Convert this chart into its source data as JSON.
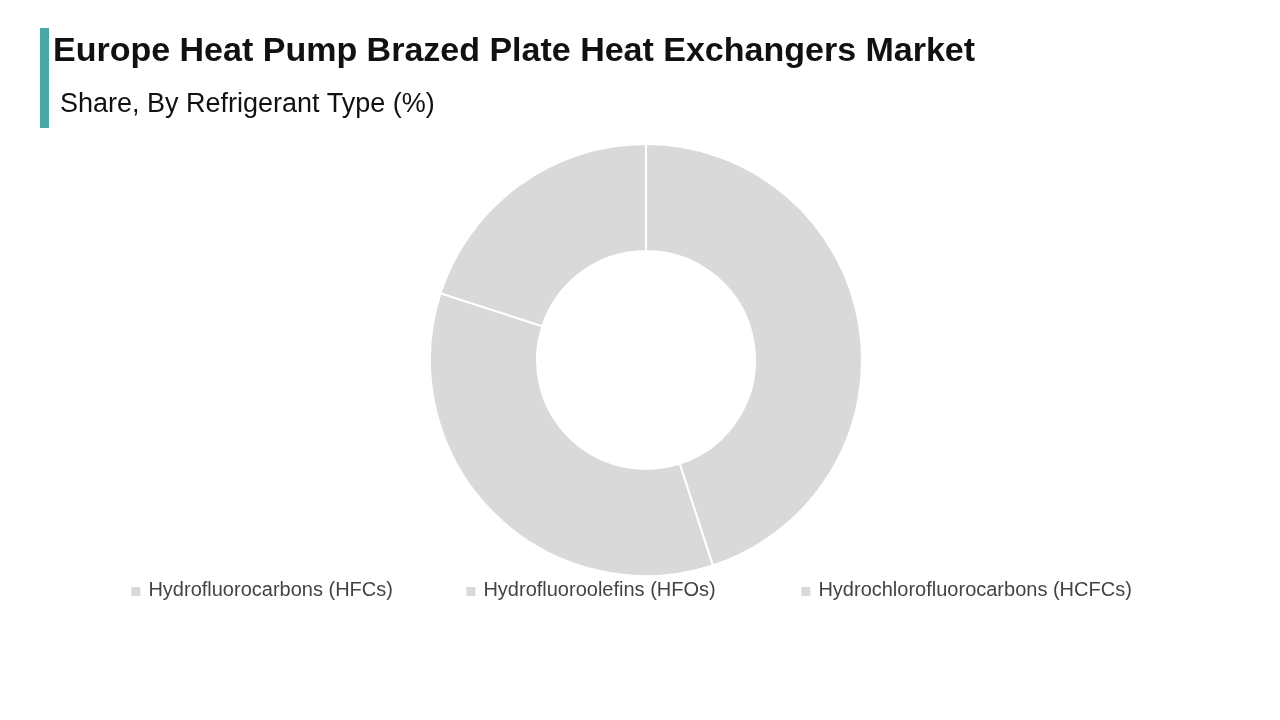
{
  "chart_data": {
    "type": "donut",
    "title": "Europe Heat Pump Brazed Plate Heat Exchangers Market",
    "subtitle": "Share, By Refrigerant Type (%)",
    "categories": [
      "Hydrofluorocarbons (HFCs)",
      "Hydrofluoroolefins (HFOs)",
      "Hydrochlorofluorocarbons (HCFCs)"
    ],
    "values": [
      45,
      35,
      20
    ],
    "colors": [
      "#d9d9d9",
      "#d9d9d9",
      "#d9d9d9"
    ],
    "legend": "bottom"
  }
}
